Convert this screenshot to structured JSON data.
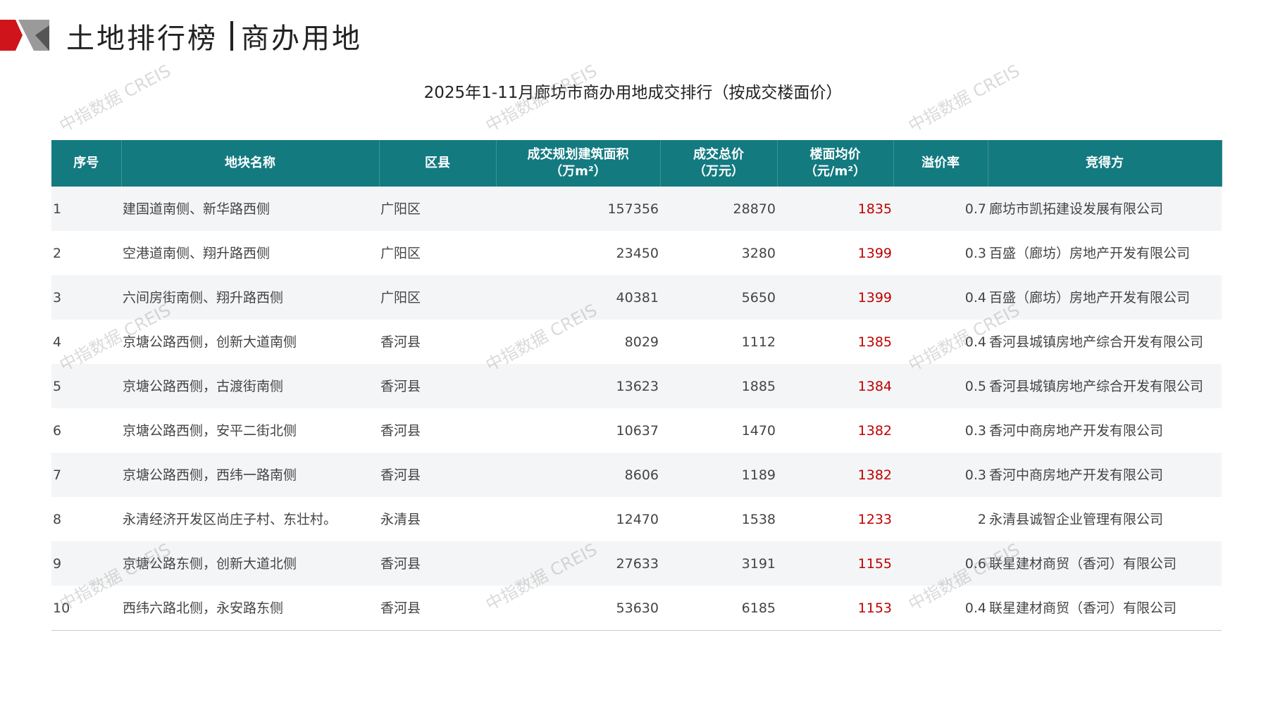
{
  "header": {
    "title_left": "土地排行榜",
    "title_right": "商办用地"
  },
  "subtitle": "2025年1-11月廊坊市商办用地成交排行（按成交楼面价）",
  "watermark": "中指数据 CREIS",
  "table": {
    "columns": [
      "序号",
      "地块名称",
      "区县",
      "成交规划建筑面积\n（万m²）",
      "成交总价\n（万元）",
      "楼面均价\n（元/m²）",
      "溢价率",
      "竞得方"
    ],
    "rows": [
      [
        1,
        "建国道南侧、新华路西侧",
        "广阳区",
        157356,
        28870,
        1835,
        0.7,
        "廊坊市凯拓建设发展有限公司"
      ],
      [
        2,
        "空港道南侧、翔升路西侧",
        "广阳区",
        23450,
        3280,
        1399,
        0.3,
        "百盛（廊坊）房地产开发有限公司"
      ],
      [
        3,
        "六间房街南侧、翔升路西侧",
        "广阳区",
        40381,
        5650,
        1399,
        0.4,
        "百盛（廊坊）房地产开发有限公司"
      ],
      [
        4,
        "京塘公路西侧，创新大道南侧",
        "香河县",
        8029,
        1112,
        1385,
        0.4,
        "香河县城镇房地产综合开发有限公司"
      ],
      [
        5,
        "京塘公路西侧，古渡街南侧",
        "香河县",
        13623,
        1885,
        1384,
        0.5,
        "香河县城镇房地产综合开发有限公司"
      ],
      [
        6,
        "京塘公路西侧，安平二街北侧",
        "香河县",
        10637,
        1470,
        1382,
        0.3,
        "香河中商房地产开发有限公司"
      ],
      [
        7,
        "京塘公路西侧，西纬一路南侧",
        "香河县",
        8606,
        1189,
        1382,
        0.3,
        "香河中商房地产开发有限公司"
      ],
      [
        8,
        "永清经济开发区尚庄子村、东壮村。",
        "永清县",
        12470,
        1538,
        1233,
        2,
        "永清县诚智企业管理有限公司"
      ],
      [
        9,
        "京塘公路东侧，创新大道北侧",
        "香河县",
        27633,
        3191,
        1155,
        0.6,
        "联星建材商贸（香河）有限公司"
      ],
      [
        10,
        "西纬六路北侧，永安路东侧",
        "香河县",
        53630,
        6185,
        1153,
        0.4,
        "联星建材商贸（香河）有限公司"
      ]
    ]
  }
}
